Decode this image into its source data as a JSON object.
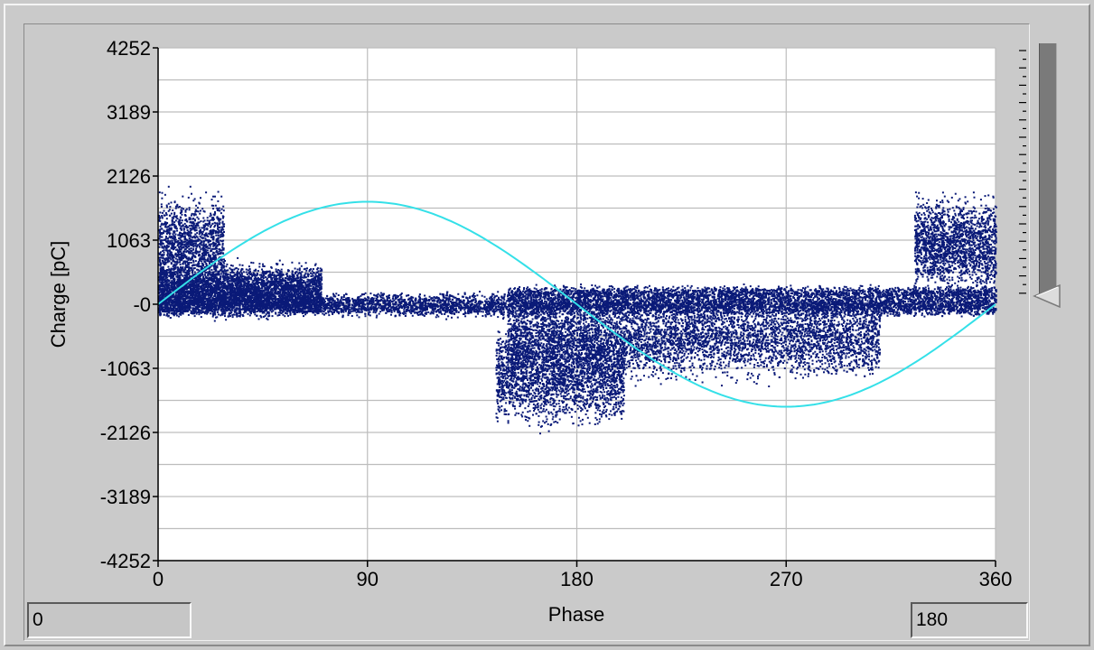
{
  "chart_data": {
    "type": "scatter",
    "xlabel": "Phase",
    "ylabel": "Charge [pC]",
    "x_ticks": [
      "0",
      "90",
      "180",
      "270",
      "360"
    ],
    "y_ticks": [
      "4252",
      "3189",
      "2126",
      "1063",
      "-0",
      "-1063",
      "-2126",
      "-3189",
      "-4252"
    ],
    "xlim": [
      0,
      360
    ],
    "ylim": [
      -4252,
      4252
    ],
    "grid": true,
    "series": [
      {
        "kind": "sine-reference",
        "color": "#34e0e8",
        "amplitude": 1700,
        "period": 360,
        "x_range": [
          0,
          360
        ]
      },
      {
        "kind": "scatter-clusters",
        "color": "#0a1a78",
        "clusters": [
          {
            "x": [
              0,
              360
            ],
            "y": [
              -250,
              250
            ],
            "count": 9000
          },
          {
            "x": [
              0,
              70
            ],
            "y": [
              -300,
              800
            ],
            "count": 4000
          },
          {
            "x": [
              0,
              28
            ],
            "y": [
              0,
              2000
            ],
            "count": 1400
          },
          {
            "x": [
              145,
              200
            ],
            "y": [
              -2200,
              -100
            ],
            "count": 2500
          },
          {
            "x": [
              150,
              310
            ],
            "y": [
              -1400,
              350
            ],
            "count": 5500
          },
          {
            "x": [
              325,
              360
            ],
            "y": [
              0,
              2000
            ],
            "count": 1800
          },
          {
            "x": [
              150,
              360
            ],
            "y": [
              50,
              350
            ],
            "count": 2000
          }
        ]
      }
    ]
  },
  "controls": {
    "range_min": "0",
    "range_max": "180"
  },
  "colors": {
    "plot_background": "#ffffff",
    "grid": "#bdbdbd",
    "panel": "#cacaca",
    "scatter": "#0a1a78",
    "reference": "#34e0e8"
  }
}
